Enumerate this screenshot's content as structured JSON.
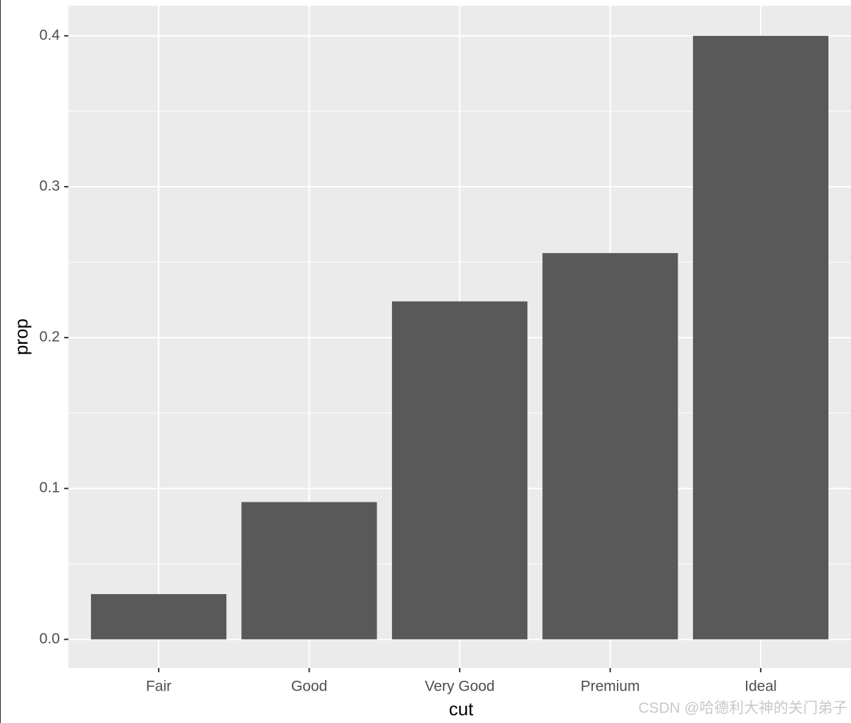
{
  "chart_data": {
    "type": "bar",
    "x_label": "cut",
    "y_label": "prop",
    "categories": [
      "Fair",
      "Good",
      "Very Good",
      "Premium",
      "Ideal"
    ],
    "values": [
      0.03,
      0.091,
      0.224,
      0.256,
      0.4
    ],
    "color": "#595959",
    "ylim": [
      -0.019,
      0.42
    ],
    "yticks": [
      {
        "value": 0,
        "label": "0.0"
      },
      0.1,
      0.2,
      0.3,
      0.4
    ],
    "grid": true,
    "minor_grid": true,
    "panel_color": "#ebebeb"
  },
  "watermark": "CSDN @哈德利大神的关门弟子"
}
